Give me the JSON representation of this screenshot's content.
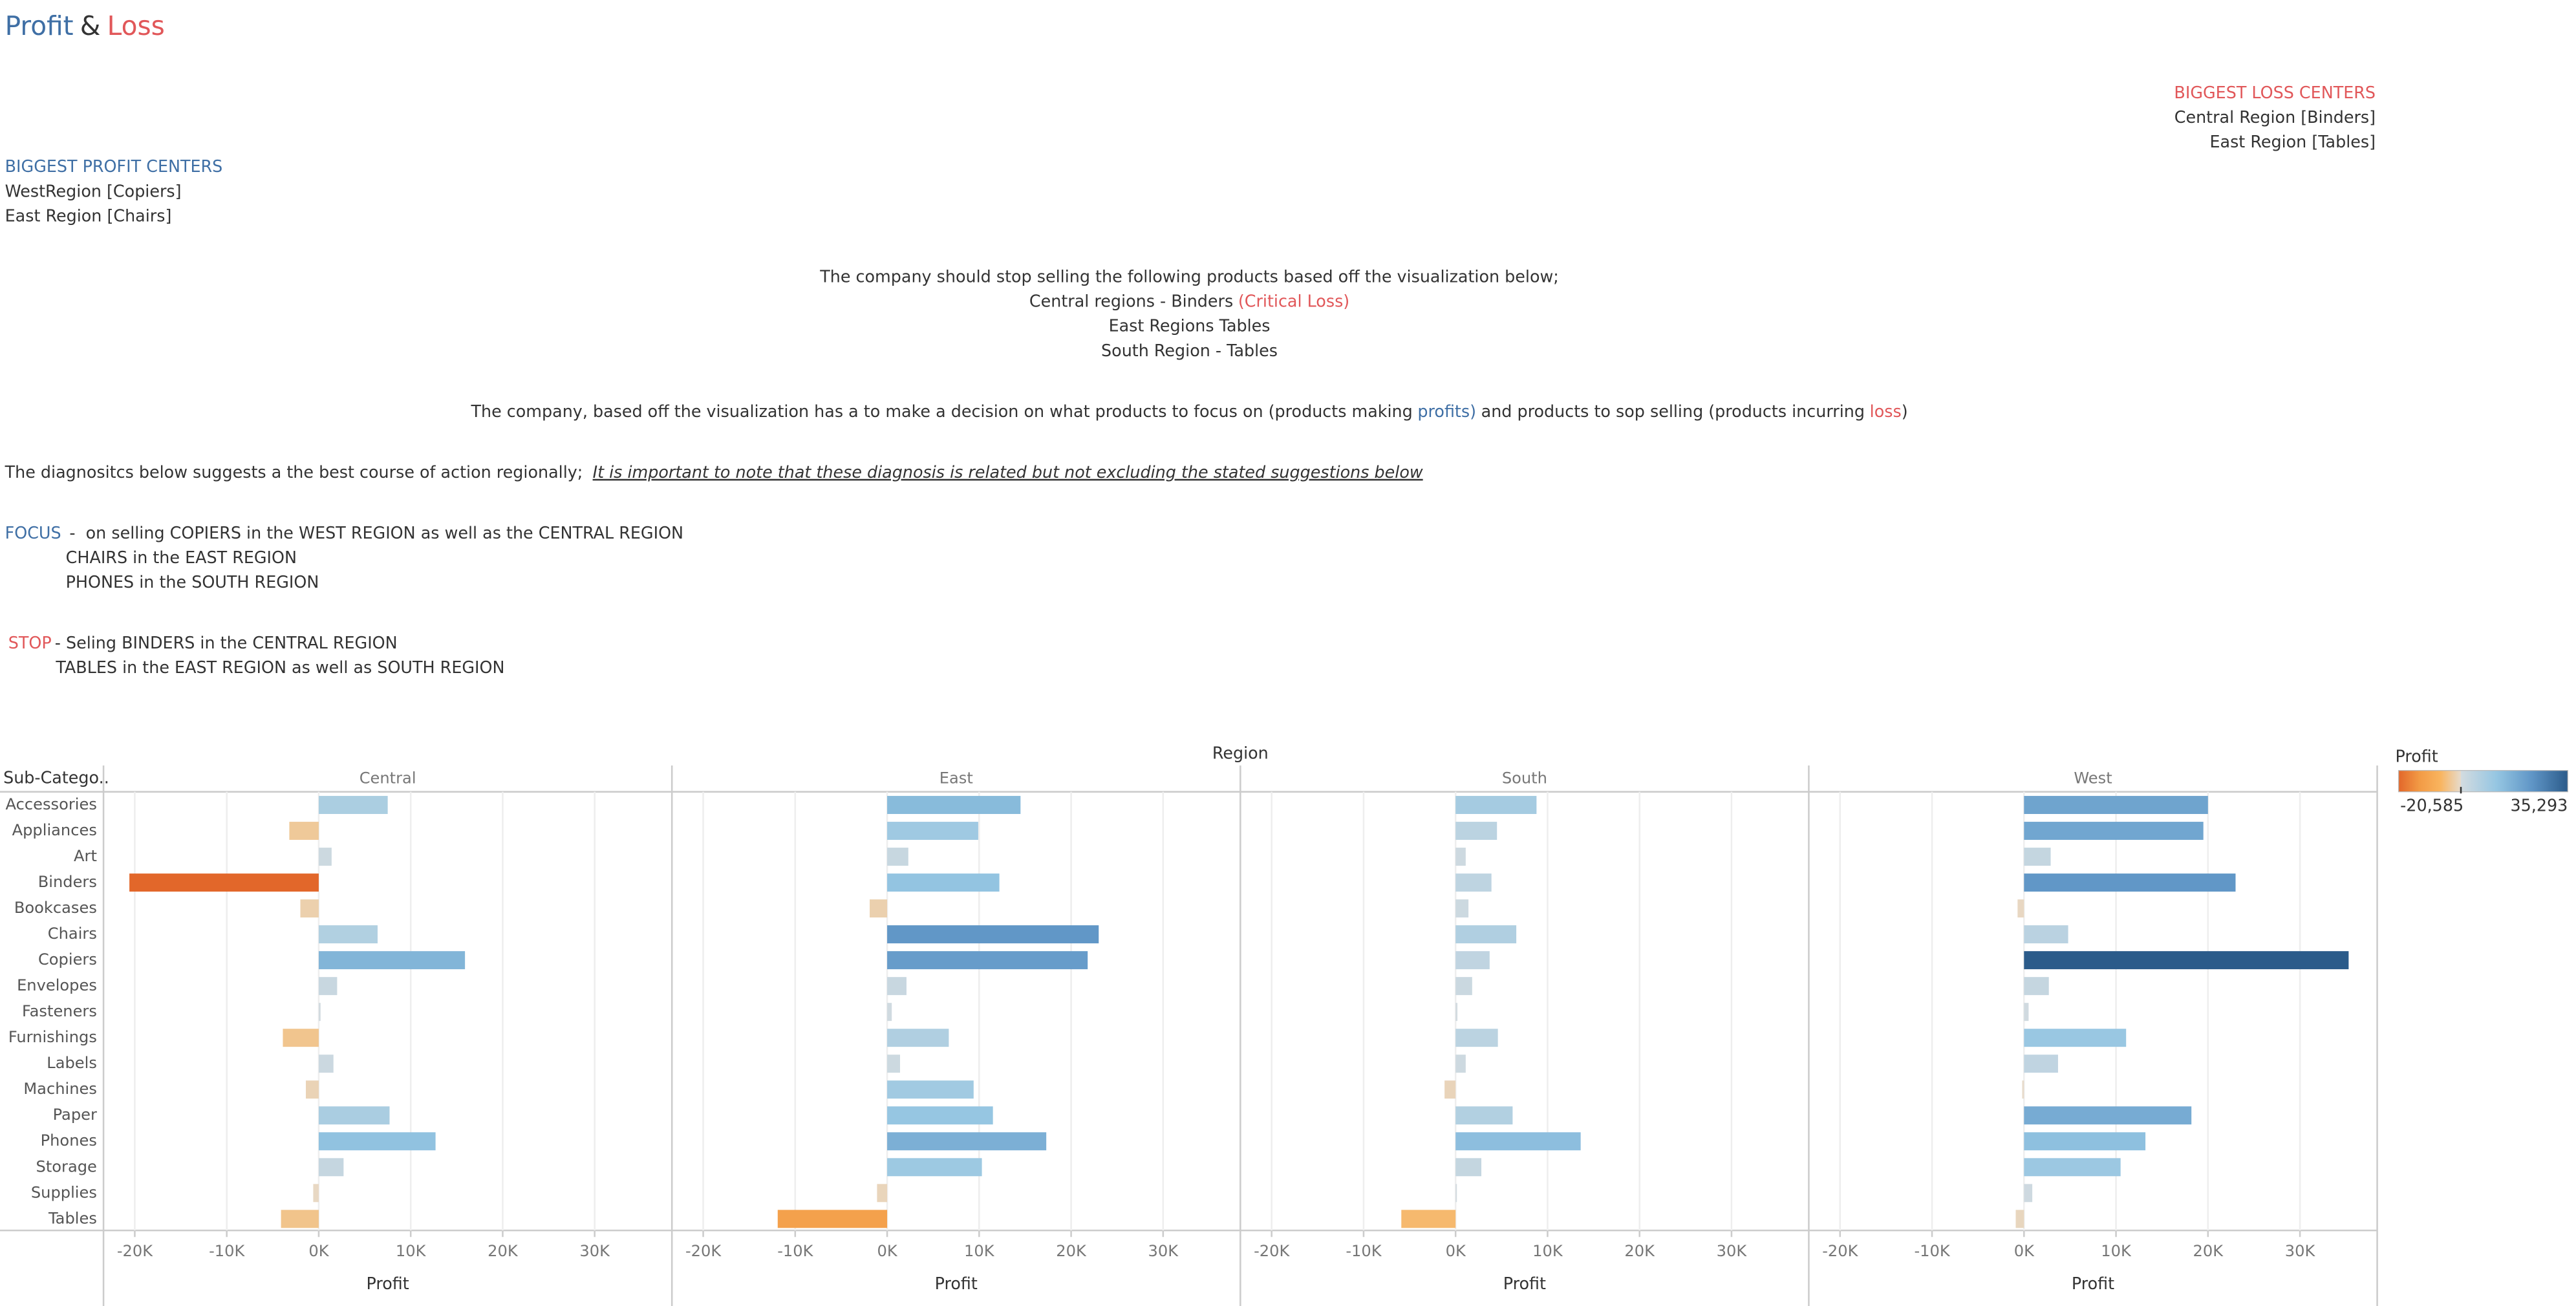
{
  "header": {
    "title": [
      "Profit",
      "&",
      "Loss"
    ]
  },
  "loss_centers": {
    "heading": "BIGGEST LOSS CENTERS",
    "items": [
      "Central Region [Binders]",
      "East Region [Tables]"
    ]
  },
  "profit_centers": {
    "heading": "BIGGEST PROFIT CENTERS",
    "items": [
      "WestRegion [Copiers]",
      "East Region [Chairs]"
    ]
  },
  "recommendation": {
    "lines": [
      "The company should stop selling the following products based off the visualization below;",
      "Central regions - Binders",
      "East Regions Tables",
      "South Region - Tables"
    ],
    "critical": "(Critical Loss)"
  },
  "decision": {
    "parts": [
      "The company, based off the visualization has a to make a decision on what products to focus on (products making",
      "profits)",
      "and products to sop selling (products incurring",
      "loss",
      ")"
    ]
  },
  "diagnostics": {
    "text": "The diagnositcs below suggests a the best course of action regionally;",
    "note": "It is important to note that these diagnosis is related but not excluding the stated suggestions below"
  },
  "focus": {
    "label": "FOCUS",
    "lines": [
      "-  on selling COPIERS in the WEST REGION as well as the CENTRAL REGION",
      "CHAIRS in the EAST REGION",
      "PHONES in the SOUTH REGION"
    ]
  },
  "stop": {
    "label": "STOP",
    "lines": [
      "- Seling BINDERS in the CENTRAL REGION",
      "TABLES in the EAST REGION as well as SOUTH REGION"
    ]
  },
  "chart_data": {
    "type": "bar",
    "orientation": "horizontal",
    "column_header": "Region",
    "row_header": "Sub-Catego..",
    "categories": [
      "Accessories",
      "Appliances",
      "Art",
      "Binders",
      "Bookcases",
      "Chairs",
      "Copiers",
      "Envelopes",
      "Fasteners",
      "Furnishings",
      "Labels",
      "Machines",
      "Paper",
      "Phones",
      "Storage",
      "Supplies",
      "Tables"
    ],
    "series": [
      {
        "name": "Central",
        "values": [
          7500,
          -3200,
          1400,
          -20585,
          -2000,
          6400,
          15900,
          2000,
          200,
          -3900,
          1600,
          -1400,
          7700,
          12700,
          2700,
          -600,
          -4100
        ]
      },
      {
        "name": "East",
        "values": [
          14500,
          9900,
          2300,
          12200,
          -1900,
          23000,
          21800,
          2100,
          500,
          6700,
          1400,
          9400,
          11500,
          17300,
          10300,
          -1100,
          -11900
        ]
      },
      {
        "name": "South",
        "values": [
          8800,
          4500,
          1100,
          3900,
          1400,
          6600,
          3700,
          1800,
          200,
          4600,
          1100,
          -1200,
          6200,
          13600,
          2800,
          100,
          -5900
        ]
      },
      {
        "name": "West",
        "values": [
          20000,
          19500,
          2900,
          23000,
          -700,
          4800,
          35293,
          2700,
          500,
          11100,
          3700,
          -200,
          18200,
          13200,
          10500,
          900,
          -900
        ]
      }
    ],
    "x_label": "Profit",
    "xlim": [
      -23400,
      38400
    ],
    "xticks": [
      {
        "value": -20000,
        "label": "-20K"
      },
      {
        "value": -10000,
        "label": "-10K"
      },
      {
        "value": 0,
        "label": "0K"
      },
      {
        "value": 10000,
        "label": "10K"
      },
      {
        "value": 20000,
        "label": "20K"
      },
      {
        "value": 30000,
        "label": "30K"
      }
    ],
    "grid": true,
    "color_legend": {
      "title": "Profit",
      "min": {
        "value": -20585,
        "label": "-20,585"
      },
      "max": {
        "value": 35293,
        "label": "35,293"
      },
      "colors_negative": [
        "#e6dbcd",
        "#f9b45e",
        "#f29a45",
        "#e2672a"
      ],
      "colors_positive": [
        "#d3dbe0",
        "#95c6e2",
        "#5f95c6",
        "#2b5b8a"
      ]
    }
  }
}
